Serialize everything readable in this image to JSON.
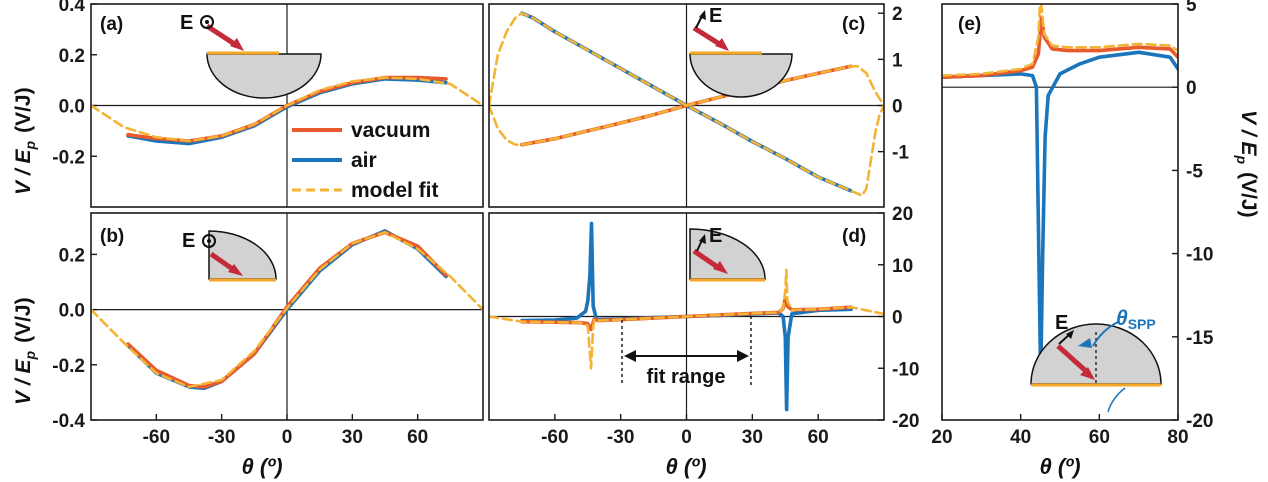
{
  "colors": {
    "vacuum": "#e8592b",
    "air": "#1b75bb",
    "fit": "#f5b335",
    "beam": "#c42a3a",
    "substrate": "#f5a623",
    "prism": "#d2d2d2",
    "spp": "#1b75bb"
  },
  "legend": {
    "vacuum": "vacuum",
    "air": "air",
    "fit": "model fit"
  },
  "labels": {
    "a": "(a)",
    "b": "(b)",
    "c": "(c)",
    "d": "(d)",
    "e": "(e)",
    "ylabel_left": "V / E",
    "ylabel_sub": "p",
    "ylabel_unit": "(V/J)",
    "xlabel": "θ (º)",
    "E": "E",
    "fit_range": "fit range",
    "theta_spp": "θ",
    "theta_spp_sub": "SPP"
  },
  "chart_data": [
    {
      "type": "line",
      "panel": "a",
      "xlim": [
        -90,
        90
      ],
      "ylim": [
        -0.4,
        0.4
      ],
      "yticks": [
        "0.4",
        "0.2",
        "0.0",
        "-0.2"
      ],
      "ytick_values": [
        0.4,
        0.2,
        0.0,
        -0.2
      ],
      "series": [
        {
          "name": "vacuum",
          "x": [
            -73,
            -60,
            -45,
            -30,
            -15,
            0,
            15,
            30,
            45,
            60,
            73
          ],
          "y": [
            -0.115,
            -0.13,
            -0.14,
            -0.12,
            -0.075,
            0.0,
            0.055,
            0.09,
            0.11,
            0.11,
            0.105
          ]
        },
        {
          "name": "air",
          "x": [
            -73,
            -60,
            -45,
            -30,
            -15,
            0,
            15,
            30,
            45,
            60,
            73
          ],
          "y": [
            -0.12,
            -0.14,
            -0.15,
            -0.125,
            -0.08,
            -0.005,
            0.05,
            0.085,
            0.105,
            0.1,
            0.09
          ]
        },
        {
          "name": "model fit",
          "x": [
            -90,
            -75,
            -60,
            -45,
            -30,
            -15,
            0,
            15,
            30,
            45,
            60,
            75,
            90
          ],
          "y": [
            0.0,
            -0.085,
            -0.125,
            -0.14,
            -0.12,
            -0.075,
            0.0,
            0.06,
            0.095,
            0.11,
            0.105,
            0.085,
            0.0
          ]
        }
      ]
    },
    {
      "type": "line",
      "panel": "b",
      "xlim": [
        -90,
        90
      ],
      "ylim": [
        -0.4,
        0.35
      ],
      "xticks": [
        "-60",
        "-30",
        "0",
        "30",
        "60"
      ],
      "xtick_values": [
        -60,
        -30,
        0,
        30,
        60
      ],
      "yticks": [
        "0.2",
        "0.0",
        "-0.2",
        "-0.4"
      ],
      "ytick_values": [
        0.2,
        0.0,
        -0.2,
        -0.4
      ],
      "series": [
        {
          "name": "vacuum",
          "x": [
            -73,
            -60,
            -45,
            -38,
            -30,
            -15,
            0,
            15,
            30,
            45,
            60,
            73
          ],
          "y": [
            -0.125,
            -0.22,
            -0.275,
            -0.28,
            -0.26,
            -0.16,
            0.01,
            0.15,
            0.24,
            0.28,
            0.23,
            0.125
          ]
        },
        {
          "name": "air",
          "x": [
            -73,
            -60,
            -45,
            -38,
            -30,
            -15,
            0,
            15,
            30,
            45,
            60,
            73
          ],
          "y": [
            -0.13,
            -0.23,
            -0.28,
            -0.285,
            -0.26,
            -0.16,
            0.0,
            0.14,
            0.235,
            0.285,
            0.22,
            0.12
          ]
        },
        {
          "name": "model fit",
          "x": [
            -90,
            -75,
            -60,
            -45,
            -30,
            -15,
            0,
            15,
            30,
            45,
            60,
            75,
            90
          ],
          "y": [
            0.0,
            -0.12,
            -0.23,
            -0.28,
            -0.255,
            -0.15,
            0.005,
            0.145,
            0.24,
            0.28,
            0.22,
            0.12,
            0.0
          ]
        }
      ]
    },
    {
      "type": "line",
      "panel": "c",
      "xlim": [
        -90,
        90
      ],
      "ylim": [
        -2.2,
        2.2
      ],
      "yticks": [
        "2",
        "1",
        "0",
        "-1"
      ],
      "ytick_values": [
        2,
        1,
        0,
        -1
      ],
      "series": [
        {
          "name": "vacuum",
          "x": [
            -75,
            -60,
            -45,
            -30,
            -15,
            0,
            15,
            30,
            45,
            60,
            75
          ],
          "y": [
            -0.85,
            -0.72,
            -0.55,
            -0.38,
            -0.2,
            0.0,
            0.18,
            0.36,
            0.54,
            0.7,
            0.85
          ]
        },
        {
          "name": "air",
          "x": [
            -75,
            -70,
            -60,
            -45,
            -30,
            -15,
            0,
            15,
            30,
            45,
            60,
            75
          ],
          "y": [
            2.0,
            1.9,
            1.6,
            1.2,
            0.8,
            0.4,
            0.0,
            -0.38,
            -0.78,
            -1.15,
            -1.55,
            -1.85
          ]
        },
        {
          "name": "model fit",
          "x": [
            -90,
            -86,
            -82,
            -78,
            -75,
            -70,
            -60,
            -45,
            -30,
            -15,
            0,
            15,
            30,
            45,
            60,
            75,
            80,
            82,
            84,
            86,
            88,
            90
          ],
          "y": [
            0.0,
            1.1,
            1.6,
            1.9,
            2.0,
            1.9,
            1.6,
            1.2,
            0.8,
            0.4,
            0.0,
            -0.38,
            -0.78,
            -1.15,
            -1.55,
            -1.85,
            -1.95,
            -1.8,
            -1.2,
            -0.6,
            -0.2,
            0.0
          ]
        },
        {
          "name": "model fit",
          "x": [
            -90,
            -86,
            -82,
            -78,
            -75,
            -60,
            -45,
            -30,
            -15,
            0,
            15,
            30,
            45,
            60,
            75,
            78,
            82,
            86,
            90
          ],
          "y": [
            0.0,
            -0.5,
            -0.75,
            -0.85,
            -0.85,
            -0.72,
            -0.55,
            -0.38,
            -0.2,
            0.0,
            0.18,
            0.36,
            0.54,
            0.7,
            0.85,
            0.85,
            0.7,
            0.3,
            0.0
          ]
        }
      ]
    },
    {
      "type": "line",
      "panel": "d",
      "xlim": [
        -90,
        90
      ],
      "ylim": [
        -20,
        20
      ],
      "xticks": [
        "-60",
        "-30",
        "0",
        "30",
        "60"
      ],
      "xtick_values": [
        -60,
        -30,
        0,
        30,
        60
      ],
      "yticks": [
        "20",
        "10",
        "0",
        "-10",
        "-20"
      ],
      "ytick_values": [
        20,
        10,
        0,
        -10,
        -20
      ],
      "fit_range": [
        -30,
        30
      ],
      "series": [
        {
          "name": "vacuum",
          "x": [
            -75,
            -60,
            -48,
            -45,
            -43.5,
            -42,
            -40,
            -30,
            -15,
            0,
            15,
            30,
            42,
            44,
            45,
            46,
            48,
            60,
            75
          ],
          "y": [
            -1.0,
            -1.1,
            -1.2,
            -1.4,
            -2.5,
            -0.5,
            -0.8,
            -0.6,
            -0.3,
            0.0,
            0.3,
            0.6,
            0.8,
            1.5,
            3.5,
            2.0,
            1.3,
            1.4,
            1.8
          ]
        },
        {
          "name": "air",
          "x": [
            -75,
            -60,
            -50,
            -46,
            -45,
            -44,
            -43.3,
            -42.5,
            -41,
            -30,
            -15,
            0,
            15,
            30,
            42,
            44,
            45,
            45.6,
            46.3,
            48,
            60,
            75
          ],
          "y": [
            -0.8,
            -0.7,
            -0.3,
            1.0,
            3.0,
            8.0,
            18.0,
            2.0,
            -0.6,
            -0.5,
            -0.2,
            0.0,
            0.2,
            0.5,
            0.7,
            0.0,
            -4.0,
            -18.0,
            -4.0,
            0.5,
            1.2,
            1.4
          ]
        },
        {
          "name": "model fit",
          "x": [
            -90,
            -75,
            -60,
            -48,
            -45,
            -43.5,
            -42.5,
            -42,
            -40,
            -30,
            -15,
            0,
            15,
            30,
            42,
            44,
            45,
            45.5,
            46,
            48,
            60,
            75,
            90
          ],
          "y": [
            0.0,
            -1.0,
            -1.1,
            -1.2,
            -1.8,
            -10.0,
            -2.0,
            -0.6,
            -0.8,
            -0.6,
            -0.3,
            0.0,
            0.3,
            0.6,
            0.8,
            1.5,
            5.0,
            9.0,
            3.0,
            1.3,
            1.4,
            1.8,
            0.5
          ]
        }
      ]
    },
    {
      "type": "line",
      "panel": "e",
      "xlim": [
        20,
        80
      ],
      "ylim": [
        -20,
        5
      ],
      "xticks": [
        "20",
        "40",
        "60",
        "80"
      ],
      "xtick_values": [
        20,
        40,
        60,
        80
      ],
      "yticks": [
        "5",
        "0",
        "-5",
        "-10",
        "-15",
        "-20"
      ],
      "ytick_values": [
        5,
        0,
        -5,
        -10,
        -15,
        -20
      ],
      "series": [
        {
          "name": "vacuum",
          "x": [
            20,
            30,
            40,
            43,
            44.5,
            45.3,
            46,
            48,
            52,
            60,
            70,
            78,
            80
          ],
          "y": [
            0.6,
            0.7,
            1.0,
            1.2,
            2.0,
            4.2,
            3.0,
            2.3,
            2.2,
            2.2,
            2.4,
            2.3,
            1.8
          ]
        },
        {
          "name": "air",
          "x": [
            20,
            30,
            40,
            43,
            44,
            44.6,
            45.1,
            45.6,
            46.2,
            47,
            50,
            55,
            60,
            70,
            78,
            80
          ],
          "y": [
            0.6,
            0.7,
            0.8,
            0.7,
            0.0,
            -10.0,
            -17.5,
            -10.0,
            -3.0,
            -0.5,
            0.8,
            1.4,
            1.8,
            2.1,
            1.8,
            1.1
          ]
        },
        {
          "name": "model fit",
          "x": [
            20,
            30,
            40,
            43,
            44.5,
            45,
            46,
            48,
            52,
            60,
            70,
            78,
            80
          ],
          "y": [
            0.7,
            0.8,
            1.1,
            1.4,
            3.0,
            5.5,
            3.2,
            2.5,
            2.4,
            2.4,
            2.6,
            2.5,
            2.2
          ]
        }
      ]
    }
  ]
}
